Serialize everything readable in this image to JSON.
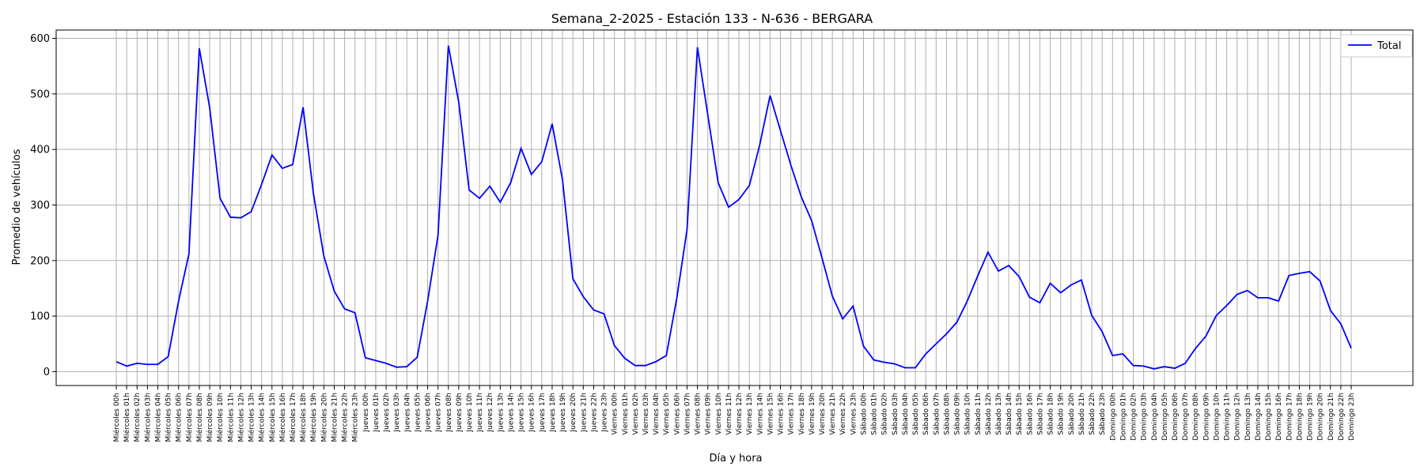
{
  "chart_data": {
    "type": "line",
    "title": "Semana_2-2025 - Estación 133 - N-636  - BERGARA",
    "xlabel": "Día y hora",
    "ylabel": "Promedio de vehículos",
    "ylim": [
      -25,
      615
    ],
    "yticks": [
      0,
      100,
      200,
      300,
      400,
      500,
      600
    ],
    "grid": true,
    "legend": {
      "placement": "top-right",
      "entries": [
        "Total"
      ]
    },
    "colors": {
      "line": "#0000ff",
      "grid": "#b0b0b0",
      "axis": "#000000"
    },
    "categories": [
      "Miércoles 00h",
      "Miércoles 01h",
      "Miércoles 02h",
      "Miércoles 03h",
      "Miércoles 04h",
      "Miércoles 05h",
      "Miércoles 06h",
      "Miércoles 07h",
      "Miércoles 08h",
      "Miércoles 09h",
      "Miércoles 10h",
      "Miércoles 11h",
      "Miércoles 12h",
      "Miércoles 13h",
      "Miércoles 14h",
      "Miércoles 15h",
      "Miércoles 16h",
      "Miércoles 17h",
      "Miércoles 18h",
      "Miércoles 19h",
      "Miércoles 20h",
      "Miércoles 21h",
      "Miércoles 22h",
      "Miércoles 23h",
      "Jueves 00h",
      "Jueves 01h",
      "Jueves 02h",
      "Jueves 03h",
      "Jueves 04h",
      "Jueves 05h",
      "Jueves 06h",
      "Jueves 07h",
      "Jueves 08h",
      "Jueves 09h",
      "Jueves 10h",
      "Jueves 11h",
      "Jueves 12h",
      "Jueves 13h",
      "Jueves 14h",
      "Jueves 15h",
      "Jueves 16h",
      "Jueves 17h",
      "Jueves 18h",
      "Jueves 19h",
      "Jueves 20h",
      "Jueves 21h",
      "Jueves 22h",
      "Jueves 23h",
      "Viernes 00h",
      "Viernes 01h",
      "Viernes 02h",
      "Viernes 03h",
      "Viernes 04h",
      "Viernes 05h",
      "Viernes 06h",
      "Viernes 07h",
      "Viernes 08h",
      "Viernes 09h",
      "Viernes 10h",
      "Viernes 11h",
      "Viernes 12h",
      "Viernes 13h",
      "Viernes 14h",
      "Viernes 15h",
      "Viernes 16h",
      "Viernes 17h",
      "Viernes 18h",
      "Viernes 19h",
      "Viernes 20h",
      "Viernes 21h",
      "Viernes 22h",
      "Viernes 23h",
      "Sábado 00h",
      "Sábado 01h",
      "Sábado 02h",
      "Sábado 03h",
      "Sábado 04h",
      "Sábado 05h",
      "Sábado 06h",
      "Sábado 07h",
      "Sábado 08h",
      "Sábado 09h",
      "Sábado 10h",
      "Sábado 11h",
      "Sábado 12h",
      "Sábado 13h",
      "Sábado 14h",
      "Sábado 15h",
      "Sábado 16h",
      "Sábado 17h",
      "Sábado 18h",
      "Sábado 19h",
      "Sábado 20h",
      "Sábado 21h",
      "Sábado 22h",
      "Sábado 23h",
      "Domingo 00h",
      "Domingo 01h",
      "Domingo 02h",
      "Domingo 03h",
      "Domingo 04h",
      "Domingo 05h",
      "Domingo 06h",
      "Domingo 07h",
      "Domingo 08h",
      "Domingo 09h",
      "Domingo 10h",
      "Domingo 11h",
      "Domingo 12h",
      "Domingo 13h",
      "Domingo 14h",
      "Domingo 15h",
      "Domingo 16h",
      "Domingo 17h",
      "Domingo 18h",
      "Domingo 19h",
      "Domingo 20h",
      "Domingo 21h",
      "Domingo 22h",
      "Domingo 23h"
    ],
    "series": [
      {
        "name": "Total",
        "values": [
          18,
          10,
          15,
          13,
          13,
          27,
          127,
          212,
          582,
          475,
          312,
          278,
          277,
          288,
          337,
          390,
          366,
          373,
          476,
          320,
          208,
          145,
          113,
          106,
          25,
          20,
          15,
          8,
          9,
          26,
          127,
          245,
          587,
          485,
          327,
          312,
          334,
          305,
          340,
          402,
          355,
          378,
          446,
          345,
          167,
          135,
          111,
          104,
          47,
          24,
          11,
          11,
          18,
          29,
          131,
          256,
          584,
          462,
          340,
          296,
          310,
          335,
          408,
          497,
          434,
          372,
          315,
          272,
          205,
          136,
          95,
          118,
          46,
          21,
          17,
          14,
          7,
          7,
          32,
          50,
          68,
          89,
          127,
          172,
          215,
          181,
          191,
          171,
          134,
          124,
          159,
          142,
          156,
          165,
          101,
          72,
          29,
          32,
          11,
          10,
          5,
          9,
          6,
          15,
          42,
          64,
          101,
          119,
          139,
          146,
          133,
          133,
          127,
          173,
          177,
          180,
          163,
          110,
          86,
          42
        ]
      }
    ]
  }
}
